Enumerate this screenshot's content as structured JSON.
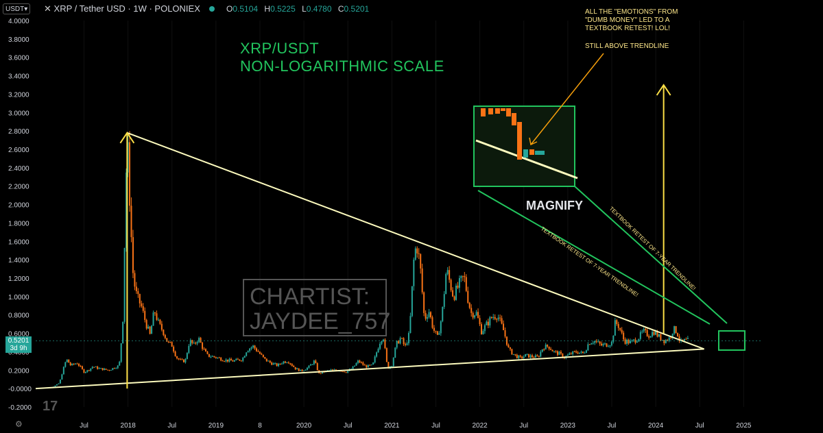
{
  "header": {
    "currency_button": "USDT",
    "symbol": "XRP / Tether USD · 1W · POLONIEX",
    "ohlc": {
      "o_label": "O",
      "o": "0.5104",
      "h_label": "H",
      "h": "0.5225",
      "l_label": "L",
      "l": "0.4780",
      "c_label": "C",
      "c": "0.5201"
    }
  },
  "annotations": {
    "title_line1": "XRP/USDT",
    "title_line2": "NON-LOGARITHMIC SCALE",
    "note_text": "ALL THE \"EMOTIONS\" FROM\n\"DUMB MONEY\" LED TO A\nTEXTBOOK RETEST! LOL!",
    "note_text2": "STILL ABOVE TRENDLINE",
    "magnify": "MAGNIFY",
    "retest_label": "TEXTBOOK RETEST OF 7-YEAR TRENDLINE!",
    "watermark_line1": "CHARTIST:",
    "watermark_line2": "JAYDEE_757"
  },
  "price_tag": {
    "price": "0.5201",
    "countdown": "3d 9h"
  },
  "colors": {
    "up": "#26a69a",
    "down": "#f97316",
    "green_line": "#22c55e",
    "trendline": "#fefcbf",
    "arrow": "#fde047",
    "bg": "#000000"
  },
  "chart_data": {
    "type": "candlestick",
    "y_ticks": [
      "4.0000",
      "3.8000",
      "3.6000",
      "3.4000",
      "3.2000",
      "3.0000",
      "2.8000",
      "2.6000",
      "2.4000",
      "2.2000",
      "2.0000",
      "1.8000",
      "1.6000",
      "1.4000",
      "1.2000",
      "1.0000",
      "0.8000",
      "0.6000",
      "0.4000",
      "0.2000",
      "-0.0000",
      "-0.2000"
    ],
    "ylim": [
      -0.2,
      4.0
    ],
    "x_ticks": [
      "Jul",
      "2018",
      "Jul",
      "2019",
      "8",
      "2020",
      "Jul",
      "2021",
      "Jul",
      "2022",
      "Jul",
      "2023",
      "Jul",
      "2024",
      "Jul",
      "2025"
    ],
    "x_tick_years": [
      2017.5,
      2018.0,
      2018.5,
      2019.0,
      2019.5,
      2020.0,
      2020.5,
      2021.0,
      2021.5,
      2022.0,
      2022.5,
      2023.0,
      2023.5,
      2024.0,
      2024.5,
      2025.0
    ],
    "xlim": [
      2016.95,
      2025.2
    ],
    "price_path": [
      [
        2016.98,
        0.006
      ],
      [
        2017.05,
        0.008
      ],
      [
        2017.1,
        0.01
      ],
      [
        2017.15,
        0.02
      ],
      [
        2017.22,
        0.06
      ],
      [
        2017.26,
        0.2
      ],
      [
        2017.3,
        0.32
      ],
      [
        2017.35,
        0.25
      ],
      [
        2017.42,
        0.28
      ],
      [
        2017.5,
        0.18
      ],
      [
        2017.55,
        0.2
      ],
      [
        2017.6,
        0.24
      ],
      [
        2017.66,
        0.22
      ],
      [
        2017.72,
        0.21
      ],
      [
        2017.78,
        0.2
      ],
      [
        2017.85,
        0.23
      ],
      [
        2017.9,
        0.25
      ],
      [
        2017.94,
        0.7
      ],
      [
        2017.97,
        1.95
      ],
      [
        2017.99,
        2.78
      ],
      [
        2018.03,
        1.8
      ],
      [
        2018.06,
        1.2
      ],
      [
        2018.1,
        1.0
      ],
      [
        2018.15,
        0.9
      ],
      [
        2018.2,
        0.72
      ],
      [
        2018.25,
        0.58
      ],
      [
        2018.3,
        0.85
      ],
      [
        2018.35,
        0.7
      ],
      [
        2018.4,
        0.62
      ],
      [
        2018.45,
        0.5
      ],
      [
        2018.5,
        0.47
      ],
      [
        2018.55,
        0.34
      ],
      [
        2018.6,
        0.3
      ],
      [
        2018.65,
        0.3
      ],
      [
        2018.7,
        0.52
      ],
      [
        2018.75,
        0.47
      ],
      [
        2018.8,
        0.55
      ],
      [
        2018.85,
        0.44
      ],
      [
        2018.9,
        0.36
      ],
      [
        2018.95,
        0.35
      ],
      [
        2019.0,
        0.34
      ],
      [
        2019.1,
        0.31
      ],
      [
        2019.2,
        0.3
      ],
      [
        2019.3,
        0.32
      ],
      [
        2019.35,
        0.42
      ],
      [
        2019.42,
        0.46
      ],
      [
        2019.48,
        0.4
      ],
      [
        2019.55,
        0.32
      ],
      [
        2019.62,
        0.28
      ],
      [
        2019.7,
        0.25
      ],
      [
        2019.76,
        0.29
      ],
      [
        2019.82,
        0.3
      ],
      [
        2019.9,
        0.22
      ],
      [
        2019.97,
        0.19
      ],
      [
        2020.05,
        0.23
      ],
      [
        2020.12,
        0.3
      ],
      [
        2020.17,
        0.16
      ],
      [
        2020.22,
        0.18
      ],
      [
        2020.3,
        0.2
      ],
      [
        2020.4,
        0.2
      ],
      [
        2020.48,
        0.18
      ],
      [
        2020.55,
        0.22
      ],
      [
        2020.62,
        0.3
      ],
      [
        2020.7,
        0.24
      ],
      [
        2020.78,
        0.25
      ],
      [
        2020.86,
        0.5
      ],
      [
        2020.9,
        0.58
      ],
      [
        2020.95,
        0.22
      ],
      [
        2021.0,
        0.26
      ],
      [
        2021.05,
        0.48
      ],
      [
        2021.1,
        0.55
      ],
      [
        2021.15,
        0.45
      ],
      [
        2021.2,
        0.6
      ],
      [
        2021.25,
        1.4
      ],
      [
        2021.28,
        1.58
      ],
      [
        2021.32,
        1.35
      ],
      [
        2021.37,
        0.75
      ],
      [
        2021.42,
        0.85
      ],
      [
        2021.47,
        0.65
      ],
      [
        2021.52,
        0.55
      ],
      [
        2021.57,
        0.8
      ],
      [
        2021.62,
        1.3
      ],
      [
        2021.66,
        1.15
      ],
      [
        2021.7,
        1.0
      ],
      [
        2021.76,
        1.12
      ],
      [
        2021.82,
        1.22
      ],
      [
        2021.86,
        1.0
      ],
      [
        2021.9,
        0.82
      ],
      [
        2021.96,
        0.82
      ],
      [
        2022.02,
        0.62
      ],
      [
        2022.08,
        0.7
      ],
      [
        2022.14,
        0.78
      ],
      [
        2022.2,
        0.8
      ],
      [
        2022.27,
        0.63
      ],
      [
        2022.33,
        0.42
      ],
      [
        2022.4,
        0.36
      ],
      [
        2022.46,
        0.33
      ],
      [
        2022.52,
        0.36
      ],
      [
        2022.58,
        0.35
      ],
      [
        2022.66,
        0.34
      ],
      [
        2022.72,
        0.45
      ],
      [
        2022.78,
        0.46
      ],
      [
        2022.84,
        0.4
      ],
      [
        2022.9,
        0.38
      ],
      [
        2022.96,
        0.34
      ],
      [
        2023.04,
        0.38
      ],
      [
        2023.1,
        0.4
      ],
      [
        2023.18,
        0.38
      ],
      [
        2023.24,
        0.5
      ],
      [
        2023.3,
        0.52
      ],
      [
        2023.38,
        0.47
      ],
      [
        2023.45,
        0.48
      ],
      [
        2023.5,
        0.5
      ],
      [
        2023.54,
        0.72
      ],
      [
        2023.58,
        0.68
      ],
      [
        2023.64,
        0.52
      ],
      [
        2023.72,
        0.5
      ],
      [
        2023.8,
        0.55
      ],
      [
        2023.86,
        0.62
      ],
      [
        2023.92,
        0.58
      ],
      [
        2023.98,
        0.62
      ],
      [
        2024.04,
        0.56
      ],
      [
        2024.1,
        0.52
      ],
      [
        2024.16,
        0.55
      ],
      [
        2024.2,
        0.65
      ],
      [
        2024.24,
        0.62
      ],
      [
        2024.28,
        0.5
      ],
      [
        2024.33,
        0.52
      ],
      [
        2024.37,
        0.5201
      ]
    ],
    "trendlines": [
      {
        "name": "upper",
        "from": [
          2017.99,
          2.78
        ],
        "to": [
          2024.55,
          0.43
        ]
      },
      {
        "name": "lower",
        "from": [
          2016.95,
          0.0
        ],
        "to": [
          2024.55,
          0.43
        ]
      }
    ],
    "arrows": [
      {
        "x": 2017.99,
        "from": 0.0,
        "to": 2.78
      },
      {
        "x": 2024.09,
        "from": 0.6,
        "to": 3.3
      }
    ]
  }
}
